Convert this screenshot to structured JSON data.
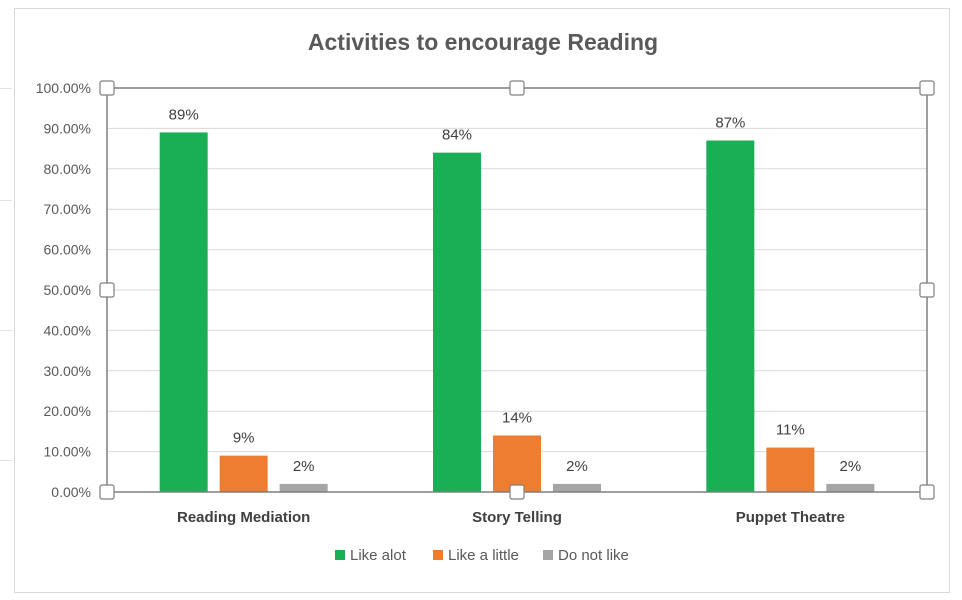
{
  "chart_data": {
    "type": "bar",
    "title": "Activities to encourage Reading",
    "categories": [
      "Reading Mediation",
      "Story Telling",
      "Puppet Theatre"
    ],
    "series": [
      {
        "name": "Like alot",
        "color": "#1aaf54",
        "values": [
          0.89,
          0.84,
          0.87
        ],
        "labels": [
          "89%",
          "84%",
          "87%"
        ]
      },
      {
        "name": "Like a little",
        "color": "#ed7d31",
        "values": [
          0.09,
          0.14,
          0.11
        ],
        "labels": [
          "9%",
          "14%",
          "11%"
        ]
      },
      {
        "name": "Do not like",
        "color": "#a5a5a5",
        "values": [
          0.02,
          0.02,
          0.02
        ],
        "labels": [
          "2%",
          "2%",
          "2%"
        ]
      }
    ],
    "ylim": [
      0,
      1
    ],
    "yticks": [
      "0.00%",
      "10.00%",
      "20.00%",
      "30.00%",
      "40.00%",
      "50.00%",
      "60.00%",
      "70.00%",
      "80.00%",
      "90.00%",
      "100.00%"
    ],
    "grid": true,
    "legend": "bottom"
  }
}
